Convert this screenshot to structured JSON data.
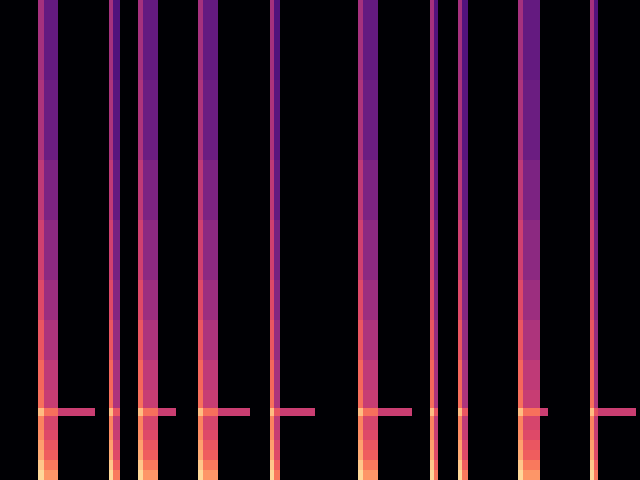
{
  "chart_data": {
    "type": "heatmap",
    "tick_labels": false,
    "color": "magma",
    "xlim": [
      0,
      640
    ],
    "ylim": [
      0,
      480
    ],
    "zlim": [
      0,
      1
    ],
    "row_edges": [
      0,
      10,
      20,
      30,
      40,
      50,
      64,
      72,
      90,
      120,
      160,
      200,
      260,
      320,
      400,
      480
    ],
    "columns": [
      {
        "x": [
          38,
          44
        ],
        "values": [
          0.92,
          0.88,
          0.82,
          0.8,
          0.76,
          0.74,
          0.86,
          0.7,
          0.68,
          0.64,
          0.6,
          0.56,
          0.52,
          0.48,
          0.46
        ]
      },
      {
        "x": [
          44,
          58
        ],
        "values": [
          0.78,
          0.72,
          0.66,
          0.64,
          0.6,
          0.58,
          0.7,
          0.54,
          0.52,
          0.48,
          0.44,
          0.4,
          0.36,
          0.32,
          0.3
        ]
      },
      {
        "x": [
          58,
          95
        ],
        "values": [
          null,
          null,
          null,
          null,
          null,
          null,
          0.55,
          null,
          null,
          null,
          null,
          null,
          null,
          null,
          null
        ]
      },
      {
        "x": [
          109,
          113
        ],
        "values": [
          0.92,
          0.88,
          0.82,
          0.8,
          0.76,
          0.74,
          0.86,
          0.7,
          0.68,
          0.64,
          0.6,
          0.56,
          0.52,
          0.48,
          0.46
        ]
      },
      {
        "x": [
          113,
          120
        ],
        "values": [
          0.72,
          0.66,
          0.6,
          0.58,
          0.54,
          0.52,
          0.64,
          0.48,
          0.46,
          0.42,
          0.38,
          0.34,
          0.3,
          0.27,
          0.25
        ]
      },
      {
        "x": [
          138,
          143
        ],
        "values": [
          0.92,
          0.88,
          0.82,
          0.8,
          0.76,
          0.74,
          0.86,
          0.7,
          0.68,
          0.64,
          0.6,
          0.56,
          0.52,
          0.48,
          0.46
        ]
      },
      {
        "x": [
          143,
          158
        ],
        "values": [
          0.78,
          0.72,
          0.66,
          0.64,
          0.6,
          0.58,
          0.7,
          0.54,
          0.52,
          0.48,
          0.44,
          0.4,
          0.36,
          0.32,
          0.3
        ]
      },
      {
        "x": [
          158,
          176
        ],
        "values": [
          null,
          null,
          null,
          null,
          null,
          null,
          0.55,
          null,
          null,
          null,
          null,
          null,
          null,
          null,
          null
        ]
      },
      {
        "x": [
          198,
          203
        ],
        "values": [
          0.92,
          0.88,
          0.82,
          0.8,
          0.76,
          0.74,
          0.86,
          0.7,
          0.68,
          0.64,
          0.6,
          0.56,
          0.52,
          0.48,
          0.46
        ]
      },
      {
        "x": [
          203,
          218
        ],
        "values": [
          0.78,
          0.72,
          0.66,
          0.64,
          0.6,
          0.58,
          0.7,
          0.54,
          0.52,
          0.48,
          0.44,
          0.4,
          0.36,
          0.32,
          0.3
        ]
      },
      {
        "x": [
          218,
          250
        ],
        "values": [
          null,
          null,
          null,
          null,
          null,
          null,
          0.55,
          null,
          null,
          null,
          null,
          null,
          null,
          null,
          null
        ]
      },
      {
        "x": [
          270,
          274
        ],
        "values": [
          0.92,
          0.88,
          0.82,
          0.8,
          0.76,
          0.74,
          0.86,
          0.7,
          0.68,
          0.64,
          0.6,
          0.56,
          0.52,
          0.48,
          0.46
        ]
      },
      {
        "x": [
          274,
          280
        ],
        "values": [
          0.72,
          0.66,
          0.6,
          0.58,
          0.54,
          0.52,
          0.64,
          0.48,
          0.46,
          0.42,
          0.38,
          0.34,
          0.3,
          0.27,
          0.25
        ]
      },
      {
        "x": [
          280,
          315
        ],
        "values": [
          null,
          null,
          null,
          null,
          null,
          null,
          0.55,
          null,
          null,
          null,
          null,
          null,
          null,
          null,
          null
        ]
      },
      {
        "x": [
          358,
          363
        ],
        "values": [
          0.92,
          0.88,
          0.82,
          0.8,
          0.76,
          0.74,
          0.86,
          0.7,
          0.68,
          0.64,
          0.6,
          0.56,
          0.52,
          0.48,
          0.46
        ]
      },
      {
        "x": [
          363,
          378
        ],
        "values": [
          0.78,
          0.72,
          0.66,
          0.64,
          0.6,
          0.58,
          0.7,
          0.54,
          0.52,
          0.48,
          0.44,
          0.4,
          0.36,
          0.32,
          0.3
        ]
      },
      {
        "x": [
          378,
          412
        ],
        "values": [
          null,
          null,
          null,
          null,
          null,
          null,
          0.55,
          null,
          null,
          null,
          null,
          null,
          null,
          null,
          null
        ]
      },
      {
        "x": [
          430,
          434
        ],
        "values": [
          0.92,
          0.88,
          0.82,
          0.8,
          0.76,
          0.74,
          0.86,
          0.7,
          0.68,
          0.64,
          0.6,
          0.56,
          0.52,
          0.48,
          0.46
        ]
      },
      {
        "x": [
          434,
          438
        ],
        "values": [
          0.72,
          0.66,
          0.6,
          0.58,
          0.54,
          0.52,
          0.64,
          0.48,
          0.46,
          0.42,
          0.38,
          0.34,
          0.3,
          0.27,
          0.25
        ]
      },
      {
        "x": [
          458,
          462
        ],
        "values": [
          0.92,
          0.88,
          0.82,
          0.8,
          0.76,
          0.74,
          0.86,
          0.7,
          0.68,
          0.64,
          0.6,
          0.56,
          0.52,
          0.48,
          0.46
        ]
      },
      {
        "x": [
          462,
          468
        ],
        "values": [
          0.72,
          0.66,
          0.6,
          0.58,
          0.54,
          0.52,
          0.64,
          0.48,
          0.46,
          0.42,
          0.38,
          0.34,
          0.3,
          0.27,
          0.25
        ]
      },
      {
        "x": [
          518,
          523
        ],
        "values": [
          0.92,
          0.88,
          0.82,
          0.8,
          0.76,
          0.74,
          0.86,
          0.7,
          0.68,
          0.64,
          0.6,
          0.56,
          0.52,
          0.48,
          0.46
        ]
      },
      {
        "x": [
          523,
          540
        ],
        "values": [
          0.78,
          0.72,
          0.66,
          0.64,
          0.6,
          0.58,
          0.7,
          0.54,
          0.52,
          0.48,
          0.44,
          0.4,
          0.36,
          0.32,
          0.3
        ]
      },
      {
        "x": [
          540,
          548
        ],
        "values": [
          null,
          null,
          null,
          null,
          null,
          null,
          0.55,
          null,
          null,
          null,
          null,
          null,
          null,
          null,
          null
        ]
      },
      {
        "x": [
          590,
          594
        ],
        "values": [
          0.92,
          0.88,
          0.82,
          0.8,
          0.76,
          0.74,
          0.86,
          0.7,
          0.68,
          0.64,
          0.6,
          0.56,
          0.52,
          0.48,
          0.46
        ]
      },
      {
        "x": [
          594,
          598
        ],
        "values": [
          0.72,
          0.66,
          0.6,
          0.58,
          0.54,
          0.52,
          0.64,
          0.48,
          0.46,
          0.42,
          0.38,
          0.34,
          0.3,
          0.27,
          0.25
        ]
      },
      {
        "x": [
          598,
          636
        ],
        "values": [
          null,
          null,
          null,
          null,
          null,
          null,
          0.55,
          null,
          null,
          null,
          null,
          null,
          null,
          null,
          null
        ]
      }
    ]
  }
}
